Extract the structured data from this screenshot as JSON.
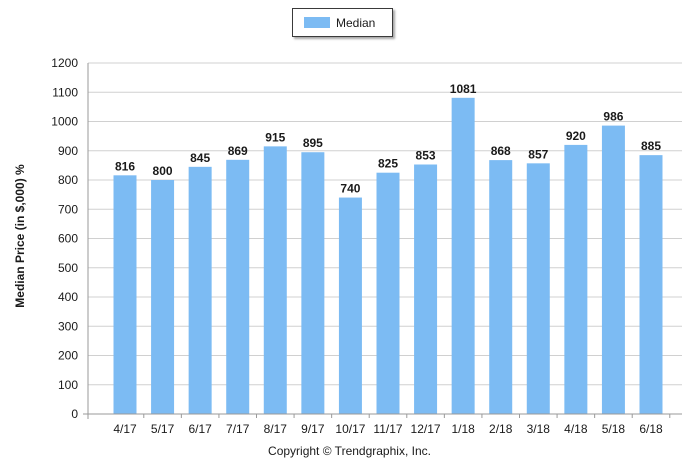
{
  "legend": {
    "label": "Median"
  },
  "footer": {
    "copyright": "Copyright © Trendgraphix, Inc."
  },
  "chart_data": {
    "type": "bar",
    "title": "",
    "xlabel": "",
    "ylabel": "Median Price (in $,000) %",
    "ylim": [
      0,
      1200
    ],
    "yticks": [
      0,
      100,
      200,
      300,
      400,
      500,
      600,
      700,
      800,
      900,
      1000,
      1100,
      1200
    ],
    "grid": true,
    "legend_position": "top-center",
    "bar_color": "#7cbbf3",
    "categories": [
      "4/17",
      "5/17",
      "6/17",
      "7/17",
      "8/17",
      "9/17",
      "10/17",
      "11/17",
      "12/17",
      "1/18",
      "2/18",
      "3/18",
      "4/18",
      "5/18",
      "6/18"
    ],
    "series": [
      {
        "name": "Median",
        "values": [
          816,
          800,
          845,
          869,
          915,
          895,
          740,
          825,
          853,
          1081,
          868,
          857,
          920,
          986,
          885
        ]
      }
    ]
  }
}
